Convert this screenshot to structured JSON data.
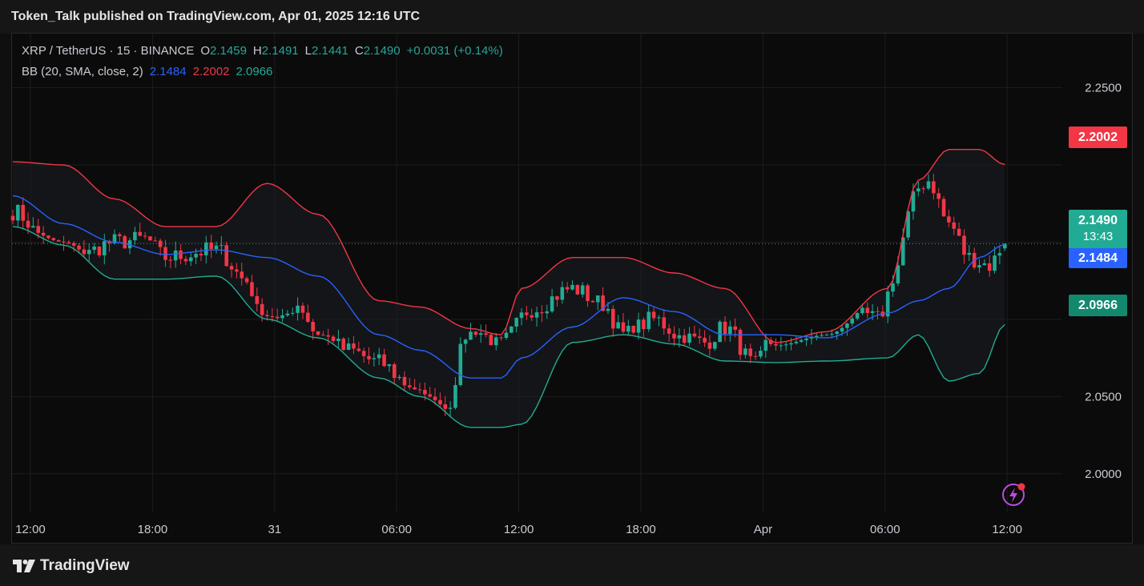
{
  "header": {
    "publish_line": "Token_Talk published on TradingView.com, Apr 01, 2025 12:16 UTC"
  },
  "legend": {
    "symbol": "XRP / TetherUS · 15 · BINANCE",
    "o_label": "O",
    "o_value": "2.1459",
    "h_label": "H",
    "h_value": "2.1491",
    "l_label": "L",
    "l_value": "2.1441",
    "c_label": "C",
    "c_value": "2.1490",
    "change": "+0.0031 (+0.14%)",
    "bb_label": "BB (20, SMA, close, 2)",
    "bb_basis": "2.1484",
    "bb_upper": "2.2002",
    "bb_lower": "2.0966"
  },
  "price_tags": {
    "upper": "2.2002",
    "last_price": "2.1490",
    "countdown": "13:43",
    "basis": "2.1484",
    "lower": "2.0966"
  },
  "footer": {
    "brand": "TradingView"
  },
  "icons": {
    "flash": "flash-icon",
    "logo": "tradingview-logo-icon"
  },
  "colors": {
    "up": "#22ab94",
    "down": "#f23645",
    "basis": "#2962ff",
    "upper_band": "#f23645",
    "lower_band": "#22ab94",
    "background": "#0b0b0b"
  },
  "chart_data": {
    "type": "candlestick",
    "symbol": "XRP / TetherUS",
    "interval": "15",
    "exchange": "BINANCE",
    "y_ticks": [
      "2.2500",
      "2.0500",
      "2.0000"
    ],
    "y_tick_values": [
      2.25,
      2.05,
      2.0
    ],
    "ylim": [
      1.975,
      2.285
    ],
    "x_ticks": [
      "12:00",
      "18:00",
      "31",
      "06:00",
      "12:00",
      "18:00",
      "Apr",
      "06:00",
      "12:00"
    ],
    "x_tick_index": [
      0,
      24,
      48,
      72,
      96,
      120,
      144,
      168,
      192
    ],
    "grid": true,
    "bb_anchors": {
      "index": [
        0,
        10,
        20,
        30,
        40,
        50,
        60,
        72,
        80,
        90,
        96,
        100,
        110,
        120,
        130,
        140,
        150,
        160,
        172,
        178,
        184,
        190,
        195
      ],
      "upper": [
        2.202,
        2.2,
        2.178,
        2.16,
        2.16,
        2.188,
        2.168,
        2.112,
        2.108,
        2.094,
        2.09,
        2.12,
        2.14,
        2.14,
        2.13,
        2.12,
        2.085,
        2.092,
        2.12,
        2.19,
        2.21,
        2.21,
        2.2002
      ],
      "basis": [
        2.18,
        2.162,
        2.15,
        2.142,
        2.145,
        2.14,
        2.128,
        2.09,
        2.08,
        2.062,
        2.062,
        2.075,
        2.095,
        2.114,
        2.105,
        2.09,
        2.09,
        2.088,
        2.104,
        2.112,
        2.12,
        2.14,
        2.1484
      ],
      "lower": [
        2.16,
        2.148,
        2.126,
        2.126,
        2.128,
        2.1,
        2.088,
        2.062,
        2.05,
        2.03,
        2.03,
        2.032,
        2.085,
        2.09,
        2.084,
        2.073,
        2.072,
        2.073,
        2.075,
        2.09,
        2.06,
        2.065,
        2.0966
      ]
    },
    "price_path": {
      "index": [
        0,
        10,
        20,
        26,
        30,
        40,
        46,
        50,
        56,
        60,
        66,
        72,
        78,
        84,
        90,
        96,
        102,
        110,
        116,
        120,
        126,
        132,
        136,
        140,
        146,
        150,
        156,
        160,
        166,
        170,
        174,
        176,
        180,
        184,
        188,
        192,
        195
      ],
      "close": [
        2.17,
        2.135,
        2.15,
        2.152,
        2.14,
        2.145,
        2.125,
        2.085,
        2.11,
        2.09,
        2.08,
        2.072,
        2.058,
        2.03,
        2.095,
        2.085,
        2.107,
        2.12,
        2.11,
        2.09,
        2.1,
        2.088,
        2.085,
        2.095,
        2.07,
        2.097,
        2.108,
        2.1,
        2.105,
        2.1,
        2.135,
        2.18,
        2.19,
        2.162,
        2.14,
        2.135,
        2.149
      ]
    },
    "last": {
      "open": 2.1459,
      "high": 2.1491,
      "low": 2.1441,
      "close": 2.149
    },
    "indicator": {
      "name": "BB",
      "length": 20,
      "ma": "SMA",
      "source": "close",
      "mult": 2,
      "basis": 2.1484,
      "upper": 2.2002,
      "lower": 2.0966
    }
  }
}
